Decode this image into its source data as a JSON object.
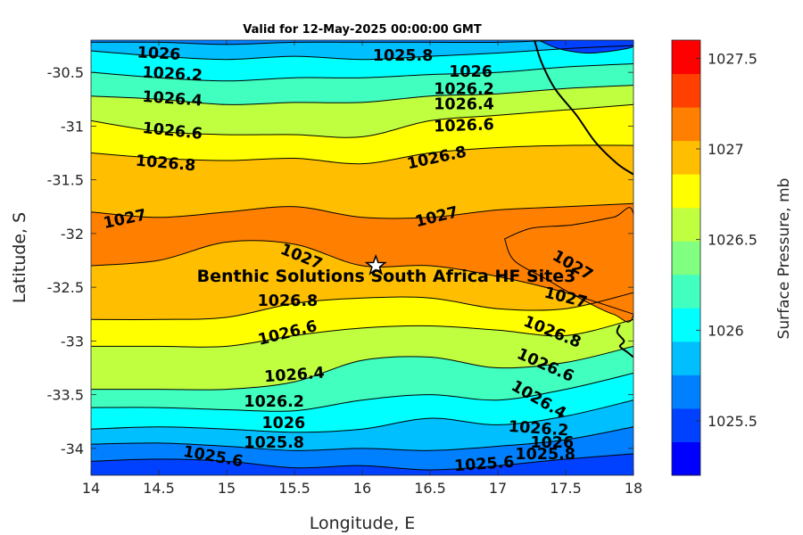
{
  "chart_data": {
    "type": "contour",
    "title": "Valid for 12-May-2025 00:00:00 GMT",
    "xlabel": "Longitude, E",
    "ylabel": "Latitude, S",
    "xlim": [
      14,
      18
    ],
    "ylim": [
      -34.25,
      -30.2
    ],
    "xticks": [
      14,
      14.5,
      15,
      15.5,
      16,
      16.5,
      17,
      17.5,
      18
    ],
    "xtick_labels": [
      "14",
      "14.5",
      "15",
      "15.5",
      "16",
      "16.5",
      "17",
      "17.5",
      "18"
    ],
    "yticks": [
      -30.5,
      -31,
      -31.5,
      -32,
      -32.5,
      -33,
      -33.5,
      -34
    ],
    "ytick_labels": [
      "-30.5",
      "-31",
      "-31.5",
      "-32",
      "-32.5",
      "-33",
      "-33.5",
      "-34"
    ],
    "colorbar": {
      "label": "Surface Pressure, mb",
      "range": [
        1025.2,
        1027.6
      ],
      "levels": [
        1025.2,
        1025.3,
        1025.4,
        1025.5,
        1025.6,
        1025.7,
        1025.8,
        1025.9,
        1026.0,
        1026.1,
        1026.2,
        1026.3,
        1026.4,
        1026.5,
        1026.6,
        1026.7,
        1026.8,
        1026.9,
        1027.0,
        1027.1,
        1027.2,
        1027.3,
        1027.4,
        1027.5,
        1027.6
      ],
      "ticks": [
        1025.5,
        1026,
        1026.5,
        1027,
        1027.5
      ],
      "tick_labels": [
        "1025.5",
        "1026",
        "1026.5",
        "1027",
        "1027.5"
      ],
      "colors": [
        "#0000ff",
        "#0040ff",
        "#0080ff",
        "#00bfff",
        "#00ffff",
        "#40ffbf",
        "#80ff80",
        "#bfff40",
        "#ffff00",
        "#ffbf00",
        "#ff8000",
        "#ff4000",
        "#ff0000"
      ]
    },
    "contour_levels": [
      {
        "value": 1025.6,
        "label": "1025.6",
        "points": [
          [
            14.0,
            -34.12
          ],
          [
            14.5,
            -34.1
          ],
          [
            15.0,
            -34.12
          ],
          [
            15.5,
            -34.18
          ],
          [
            16.0,
            -34.16
          ],
          [
            16.5,
            -34.2
          ],
          [
            17.0,
            -34.16
          ],
          [
            17.5,
            -34.1
          ],
          [
            18.0,
            -34.05
          ]
        ]
      },
      {
        "value": 1025.8,
        "label": "1025.8",
        "points": [
          [
            14.0,
            -33.96
          ],
          [
            14.5,
            -33.95
          ],
          [
            15.0,
            -33.98
          ],
          [
            15.5,
            -34.02
          ],
          [
            16.0,
            -34.0
          ],
          [
            16.5,
            -34.02
          ],
          [
            17.0,
            -33.98
          ],
          [
            17.5,
            -33.92
          ],
          [
            18.0,
            -33.8
          ]
        ]
      },
      {
        "value": 1026.0,
        "label": "1026",
        "points": [
          [
            14.0,
            -33.82
          ],
          [
            14.5,
            -33.8
          ],
          [
            15.0,
            -33.82
          ],
          [
            15.5,
            -33.85
          ],
          [
            16.0,
            -33.82
          ],
          [
            16.5,
            -33.72
          ],
          [
            17.0,
            -33.78
          ],
          [
            17.5,
            -33.7
          ],
          [
            18.0,
            -33.55
          ]
        ]
      },
      {
        "value": 1026.2,
        "label": "1026.2",
        "points": [
          [
            14.0,
            -33.62
          ],
          [
            14.5,
            -33.62
          ],
          [
            15.0,
            -33.64
          ],
          [
            15.5,
            -33.65
          ],
          [
            16.0,
            -33.55
          ],
          [
            16.5,
            -33.5
          ],
          [
            17.0,
            -33.55
          ],
          [
            17.5,
            -33.45
          ],
          [
            18.0,
            -33.3
          ]
        ]
      },
      {
        "value": 1026.4,
        "label": "1026.4",
        "points": [
          [
            14.0,
            -33.45
          ],
          [
            14.5,
            -33.45
          ],
          [
            15.0,
            -33.45
          ],
          [
            15.5,
            -33.38
          ],
          [
            16.0,
            -33.18
          ],
          [
            16.5,
            -33.15
          ],
          [
            17.0,
            -33.25
          ],
          [
            17.5,
            -33.2
          ],
          [
            18.0,
            -33.05
          ]
        ]
      },
      {
        "value": 1026.6,
        "label": "1026.6",
        "points": [
          [
            14.0,
            -33.05
          ],
          [
            14.5,
            -33.05
          ],
          [
            15.0,
            -33.05
          ],
          [
            15.5,
            -32.95
          ],
          [
            16.0,
            -32.88
          ],
          [
            16.5,
            -32.86
          ],
          [
            17.0,
            -32.9
          ],
          [
            17.5,
            -32.95
          ],
          [
            18.0,
            -32.8
          ]
        ]
      },
      {
        "value": 1026.8,
        "label": "1026.8",
        "points": [
          [
            14.0,
            -32.8
          ],
          [
            14.5,
            -32.8
          ],
          [
            15.0,
            -32.78
          ],
          [
            15.5,
            -32.65
          ],
          [
            16.0,
            -32.6
          ],
          [
            16.5,
            -32.6
          ],
          [
            17.0,
            -32.7
          ],
          [
            17.5,
            -32.7
          ],
          [
            18.0,
            -32.55
          ]
        ]
      },
      {
        "value": 1027.0,
        "label": "1027",
        "points": [
          [
            14.0,
            -32.3
          ],
          [
            14.5,
            -32.25
          ],
          [
            15.0,
            -32.08
          ],
          [
            15.5,
            -32.1
          ],
          [
            16.0,
            -32.3
          ],
          [
            16.5,
            -32.3
          ],
          [
            17.0,
            -32.4
          ],
          [
            17.5,
            -32.55
          ],
          [
            18.0,
            -32.75
          ]
        ]
      },
      {
        "value": 1027.0,
        "label": "1027",
        "points": [
          [
            14.0,
            -31.8
          ],
          [
            14.5,
            -31.85
          ],
          [
            15.0,
            -31.8
          ],
          [
            15.5,
            -31.75
          ],
          [
            16.0,
            -31.85
          ],
          [
            16.5,
            -31.85
          ],
          [
            17.0,
            -31.78
          ],
          [
            17.5,
            -31.75
          ],
          [
            18.0,
            -31.72
          ]
        ]
      },
      {
        "value": 1026.8,
        "label": "1026.8",
        "points": [
          [
            14.0,
            -31.25
          ],
          [
            14.5,
            -31.3
          ],
          [
            15.0,
            -31.32
          ],
          [
            15.5,
            -31.3
          ],
          [
            16.0,
            -31.35
          ],
          [
            16.5,
            -31.25
          ],
          [
            17.0,
            -31.2
          ],
          [
            17.5,
            -31.18
          ],
          [
            18.0,
            -31.18
          ]
        ]
      },
      {
        "value": 1026.6,
        "label": "1026.6",
        "points": [
          [
            14.0,
            -30.95
          ],
          [
            14.5,
            -31.05
          ],
          [
            15.0,
            -31.08
          ],
          [
            15.5,
            -31.08
          ],
          [
            16.0,
            -31.1
          ],
          [
            16.5,
            -30.95
          ],
          [
            17.0,
            -30.9
          ],
          [
            17.5,
            -30.85
          ],
          [
            18.0,
            -30.8
          ]
        ]
      },
      {
        "value": 1026.4,
        "label": "1026.4",
        "points": [
          [
            14.0,
            -30.72
          ],
          [
            14.5,
            -30.75
          ],
          [
            15.0,
            -30.8
          ],
          [
            15.5,
            -30.78
          ],
          [
            16.0,
            -30.78
          ],
          [
            16.5,
            -30.72
          ],
          [
            17.0,
            -30.7
          ],
          [
            17.5,
            -30.65
          ],
          [
            18.0,
            -30.62
          ]
        ]
      },
      {
        "value": 1026.2,
        "label": "1026.2",
        "points": [
          [
            14.0,
            -30.5
          ],
          [
            14.5,
            -30.55
          ],
          [
            15.0,
            -30.58
          ],
          [
            15.5,
            -30.55
          ],
          [
            16.0,
            -30.55
          ],
          [
            16.5,
            -30.52
          ],
          [
            17.0,
            -30.5
          ],
          [
            17.5,
            -30.45
          ],
          [
            18.0,
            -30.42
          ]
        ]
      },
      {
        "value": 1026.0,
        "label": "1026",
        "points": [
          [
            14.0,
            -30.3
          ],
          [
            14.5,
            -30.35
          ],
          [
            15.0,
            -30.38
          ],
          [
            15.5,
            -30.35
          ],
          [
            16.0,
            -30.38
          ],
          [
            16.5,
            -30.35
          ],
          [
            17.0,
            -30.32
          ],
          [
            17.5,
            -30.28
          ],
          [
            18.0,
            -30.25
          ]
        ]
      },
      {
        "value": 1025.8,
        "label": "1025.8",
        "points": [
          [
            14.0,
            -30.22
          ],
          [
            14.5,
            -30.22
          ],
          [
            15.0,
            -30.24
          ],
          [
            15.5,
            -30.22
          ],
          [
            16.0,
            -30.22
          ],
          [
            16.5,
            -30.22
          ],
          [
            17.0,
            -30.22
          ],
          [
            17.5,
            -30.2
          ],
          [
            18.0,
            -30.2
          ]
        ]
      }
    ],
    "contour_labels": [
      {
        "text": "1026",
        "x": 14.5,
        "y": -30.33,
        "angle": 3
      },
      {
        "text": "1025.8",
        "x": 16.3,
        "y": -30.35,
        "angle": 0
      },
      {
        "text": "1026.2",
        "x": 14.6,
        "y": -30.52,
        "angle": 3
      },
      {
        "text": "1026",
        "x": 16.8,
        "y": -30.5,
        "angle": 0
      },
      {
        "text": "1026.2",
        "x": 16.75,
        "y": -30.66,
        "angle": 0
      },
      {
        "text": "1026.4",
        "x": 14.6,
        "y": -30.75,
        "angle": 4
      },
      {
        "text": "1026.4",
        "x": 16.75,
        "y": -30.8,
        "angle": 0
      },
      {
        "text": "1026.6",
        "x": 14.6,
        "y": -31.05,
        "angle": 6
      },
      {
        "text": "1026.6",
        "x": 16.75,
        "y": -31.0,
        "angle": -2
      },
      {
        "text": "1026.8",
        "x": 14.55,
        "y": -31.35,
        "angle": 5
      },
      {
        "text": "1026.8",
        "x": 16.55,
        "y": -31.3,
        "angle": -12
      },
      {
        "text": "1027",
        "x": 14.25,
        "y": -31.87,
        "angle": -12
      },
      {
        "text": "1027",
        "x": 16.55,
        "y": -31.85,
        "angle": -14
      },
      {
        "text": "1027",
        "x": 15.55,
        "y": -32.22,
        "angle": 22
      },
      {
        "text": "1027",
        "x": 17.55,
        "y": -32.3,
        "angle": 30
      },
      {
        "text": "1026.8",
        "x": 15.45,
        "y": -32.63,
        "angle": 0
      },
      {
        "text": "1027",
        "x": 17.5,
        "y": -32.6,
        "angle": 14
      },
      {
        "text": "1026.6",
        "x": 15.45,
        "y": -32.93,
        "angle": -14
      },
      {
        "text": "1026.8",
        "x": 17.4,
        "y": -32.92,
        "angle": 22
      },
      {
        "text": "1026.4",
        "x": 15.5,
        "y": -33.32,
        "angle": -4
      },
      {
        "text": "1026.6",
        "x": 17.35,
        "y": -33.23,
        "angle": 24
      },
      {
        "text": "1026.2",
        "x": 15.35,
        "y": -33.57,
        "angle": 0
      },
      {
        "text": "1026.4",
        "x": 17.3,
        "y": -33.55,
        "angle": 30
      },
      {
        "text": "1026",
        "x": 15.42,
        "y": -33.77,
        "angle": 0
      },
      {
        "text": "1026.2",
        "x": 17.3,
        "y": -33.82,
        "angle": 4
      },
      {
        "text": "1026",
        "x": 17.4,
        "y": -33.95,
        "angle": 0
      },
      {
        "text": "1025.8",
        "x": 15.35,
        "y": -33.95,
        "angle": 0
      },
      {
        "text": "1025.8",
        "x": 17.35,
        "y": -34.06,
        "angle": 0
      },
      {
        "text": "1025.6",
        "x": 14.9,
        "y": -34.08,
        "angle": 10
      },
      {
        "text": "1025.6",
        "x": 16.9,
        "y": -34.15,
        "angle": -4
      }
    ],
    "site": {
      "name": "Benthic Solutions South Africa HF Site3",
      "lon": 16.1,
      "lat": -32.3
    },
    "coastline": [
      [
        17.27,
        -30.2
      ],
      [
        17.32,
        -30.4
      ],
      [
        17.42,
        -30.65
      ],
      [
        17.58,
        -30.9
      ],
      [
        17.72,
        -31.15
      ],
      [
        17.88,
        -31.35
      ],
      [
        18.0,
        -31.45
      ]
    ],
    "coastline_south": [
      [
        17.9,
        -32.85
      ],
      [
        17.88,
        -32.92
      ],
      [
        17.93,
        -33.0
      ],
      [
        17.9,
        -33.05
      ],
      [
        17.95,
        -33.1
      ],
      [
        18.0,
        -33.15
      ]
    ]
  }
}
